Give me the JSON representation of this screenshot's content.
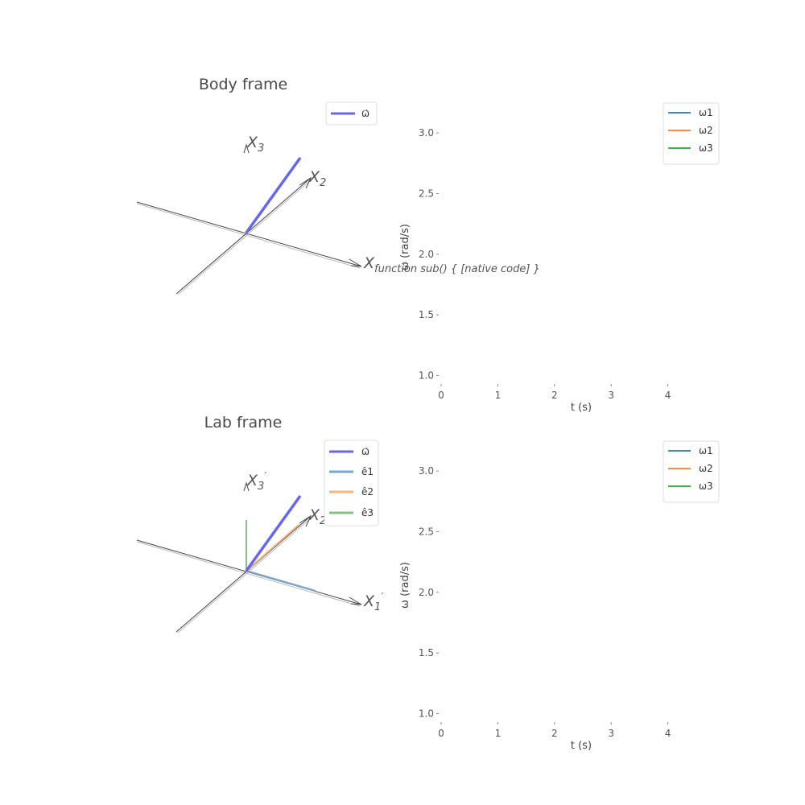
{
  "panels": [
    {
      "title": "Body frame",
      "axes_names": [
        "X1",
        "X2",
        "X3"
      ],
      "legend": [
        {
          "label": "ω⃗",
          "color": "#6666ee"
        }
      ]
    },
    {
      "title": "Lab frame",
      "axes_names": [
        "X1'",
        "X2'",
        "X3'"
      ],
      "legend": [
        {
          "label": "ω⃗",
          "color": "#6666ee"
        },
        {
          "label": "ê1",
          "color": "#7aa6d2"
        },
        {
          "label": "ê2",
          "color": "#f7b580"
        },
        {
          "label": "ê3",
          "color": "#85c185"
        }
      ]
    }
  ],
  "chart_data": [
    {
      "type": "line",
      "title": "",
      "xlabel": "t (s)",
      "ylabel": "ω (rad/s)",
      "xlim": [
        0,
        5
      ],
      "ylim": [
        0.95,
        3.3
      ],
      "xticks": [
        0,
        1,
        2,
        3,
        4
      ],
      "yticks": [
        1.0,
        1.5,
        2.0,
        2.5,
        3.0
      ],
      "legend_position": "top-right",
      "series": [
        {
          "name": "ω1",
          "color": "#1f77b4",
          "x": [],
          "y": []
        },
        {
          "name": "ω2",
          "color": "#ff7f0e",
          "x": [],
          "y": []
        },
        {
          "name": "ω3",
          "color": "#2ca02c",
          "x": [],
          "y": []
        }
      ]
    },
    {
      "type": "line",
      "title": "",
      "xlabel": "t (s)",
      "ylabel": "ω (rad/s)",
      "xlim": [
        0,
        5
      ],
      "ylim": [
        0.95,
        3.3
      ],
      "xticks": [
        0,
        1,
        2,
        3,
        4
      ],
      "yticks": [
        1.0,
        1.5,
        2.0,
        2.5,
        3.0
      ],
      "legend_position": "top-right",
      "series": [
        {
          "name": "ω1",
          "color": "#1f77b4",
          "x": [],
          "y": []
        },
        {
          "name": "ω2",
          "color": "#ff7f0e",
          "x": [],
          "y": []
        },
        {
          "name": "ω3",
          "color": "#2ca02c",
          "x": [],
          "y": []
        }
      ]
    }
  ]
}
